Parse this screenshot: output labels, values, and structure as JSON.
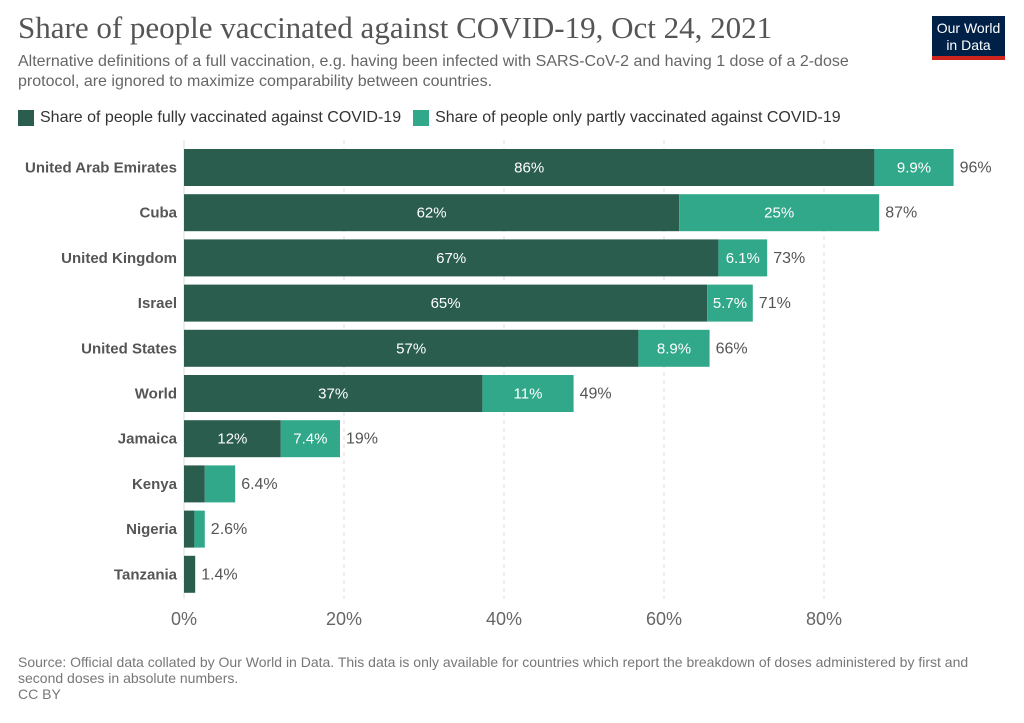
{
  "header": {
    "title": "Share of people vaccinated against COVID-19, Oct 24, 2021",
    "subtitle": "Alternative definitions of a full vaccination, e.g. having been infected with SARS-CoV-2 and having 1 dose of a 2-dose protocol, are ignored to maximize comparability between countries.",
    "logo_line1": "Our World",
    "logo_line2": "in Data"
  },
  "colors": {
    "fully": "#2a5d4e",
    "partly": "#32a88a",
    "grid": "#dddddd",
    "logo_bg": "#002147",
    "logo_accent": "#ce261e"
  },
  "chart_data": {
    "type": "bar",
    "orientation": "horizontal",
    "stacked": true,
    "title": "Share of people vaccinated against COVID-19, Oct 24, 2021",
    "xlabel": "",
    "ylabel": "",
    "xlim": [
      0,
      96
    ],
    "grid": true,
    "legend_position": "top-left",
    "x_ticks": [
      0,
      20,
      40,
      60,
      80
    ],
    "x_tick_labels": [
      "0%",
      "20%",
      "40%",
      "60%",
      "80%"
    ],
    "categories": [
      "United Arab Emirates",
      "Cuba",
      "United Kingdom",
      "Israel",
      "United States",
      "World",
      "Jamaica",
      "Kenya",
      "Nigeria",
      "Tanzania"
    ],
    "series": [
      {
        "name": "Share of people fully vaccinated against COVID-19",
        "values": [
          86.3,
          61.9,
          66.8,
          65.4,
          56.8,
          37.3,
          12.1,
          2.6,
          1.3,
          1.4
        ],
        "labels": [
          "86%",
          "62%",
          "67%",
          "65%",
          "57%",
          "37%",
          "12%",
          "",
          "",
          ""
        ]
      },
      {
        "name": "Share of people only partly vaccinated against COVID-19",
        "values": [
          9.9,
          25.0,
          6.1,
          5.7,
          8.9,
          11.4,
          7.4,
          3.8,
          1.3,
          0
        ],
        "labels": [
          "9.9%",
          "25%",
          "6.1%",
          "5.7%",
          "8.9%",
          "11%",
          "7.4%",
          "",
          "",
          ""
        ]
      }
    ],
    "totals": [
      96.2,
      86.9,
      72.9,
      71.1,
      65.7,
      48.7,
      19.5,
      6.4,
      2.6,
      1.4
    ],
    "total_labels": [
      "96%",
      "87%",
      "73%",
      "71%",
      "66%",
      "49%",
      "19%",
      "6.4%",
      "2.6%",
      "1.4%"
    ]
  },
  "footer": {
    "source": "Source: Official data collated by Our World in Data. This data is only available for countries which report the breakdown of doses administered by first and second doses in absolute numbers.",
    "license": "CC BY"
  }
}
